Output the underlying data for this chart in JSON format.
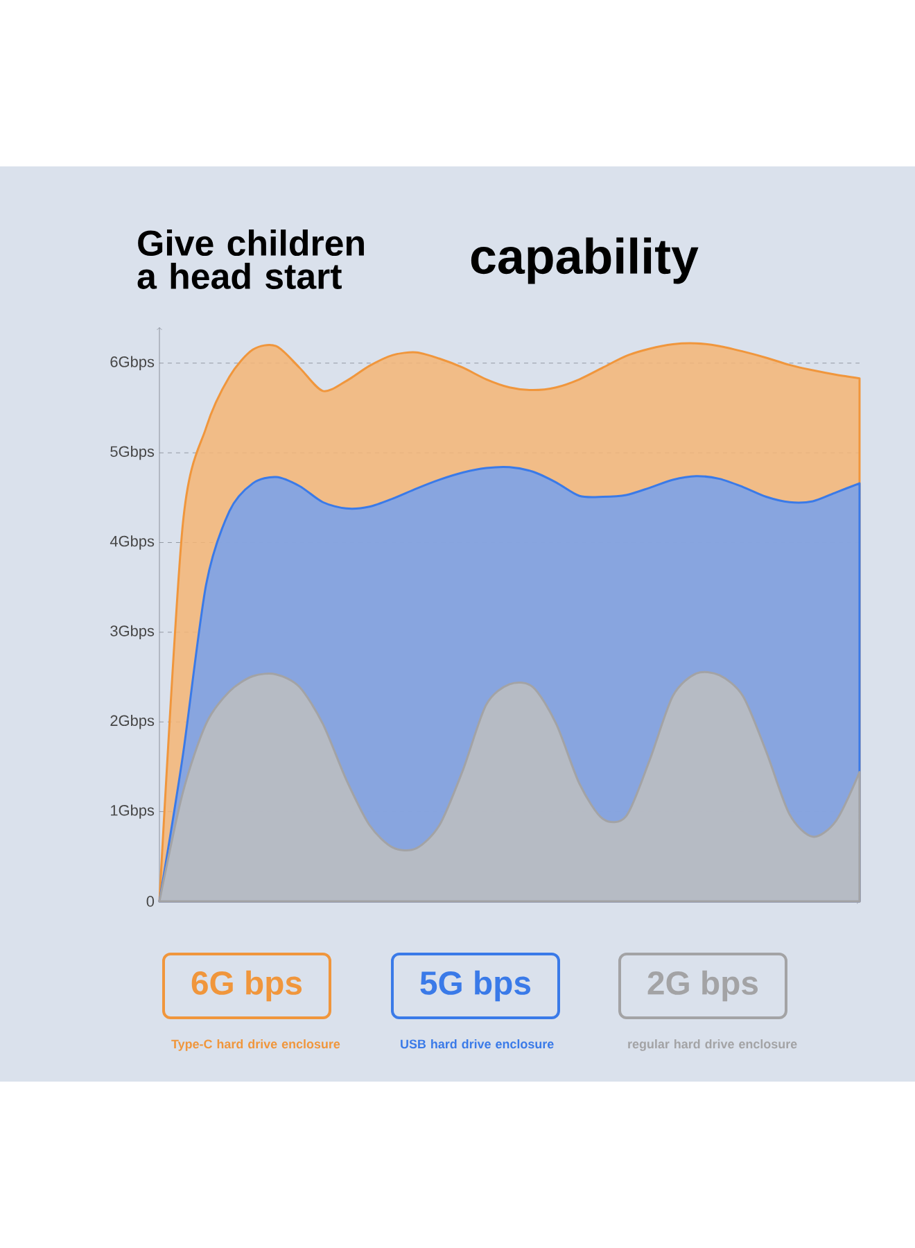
{
  "chart_data": {
    "type": "area",
    "title": "Give children a head start",
    "subtitle": "capability",
    "categories": [
      null,
      null,
      null,
      null,
      null,
      null,
      null,
      null,
      null,
      null,
      null,
      null,
      null,
      null,
      null,
      null,
      null,
      null,
      null,
      null,
      null,
      null,
      null,
      null,
      null,
      null,
      null,
      null,
      null,
      null,
      null
    ],
    "series": [
      {
        "name": "6G bps",
        "color": "#f0963c",
        "values": [
          0,
          4.2,
          5.28,
          5.85,
          6.15,
          6.19,
          5.95,
          5.69,
          5.8,
          5.97,
          6.09,
          6.12,
          6.05,
          5.95,
          5.82,
          5.73,
          5.7,
          5.73,
          5.82,
          5.95,
          6.08,
          6.16,
          6.21,
          6.22,
          6.19,
          6.13,
          6.06,
          5.98,
          5.92,
          5.87,
          5.83
        ]
      },
      {
        "name": "5G bps",
        "color": "#3a7ae8",
        "values": [
          0,
          1.62,
          3.53,
          4.35,
          4.66,
          4.73,
          4.63,
          4.45,
          4.38,
          4.4,
          4.49,
          4.6,
          4.7,
          4.78,
          4.83,
          4.84,
          4.79,
          4.67,
          4.52,
          4.51,
          4.53,
          4.61,
          4.7,
          4.74,
          4.71,
          4.62,
          4.51,
          4.45,
          4.46,
          4.56,
          4.66
        ]
      },
      {
        "name": "2G bps",
        "color": "#a3a3a5",
        "values": [
          0,
          1.21,
          1.98,
          2.34,
          2.51,
          2.53,
          2.39,
          1.98,
          1.36,
          0.85,
          0.6,
          0.59,
          0.85,
          1.46,
          2.19,
          2.42,
          2.39,
          1.98,
          1.31,
          0.92,
          0.95,
          1.57,
          2.29,
          2.54,
          2.52,
          2.29,
          1.67,
          0.97,
          0.72,
          0.9,
          1.44
        ]
      }
    ],
    "ylim": [
      0,
      6.4
    ],
    "yticks": [
      0,
      {
        "value": 1,
        "label": "1Gbps"
      },
      {
        "value": 2,
        "label": "2Gbps"
      },
      {
        "value": 3,
        "label": "3Gbps"
      },
      {
        "value": 4,
        "label": "4Gbps"
      },
      {
        "value": 5,
        "label": "5Gbps"
      },
      {
        "value": 6,
        "label": "6Gbps"
      }
    ],
    "grid": "y",
    "legend": "bottom",
    "tick_labels": "y",
    "annotations": [
      "Type-C hard drive enclosure",
      "USB hard drive enclosure",
      "regular hard drive enclosure"
    ]
  }
}
